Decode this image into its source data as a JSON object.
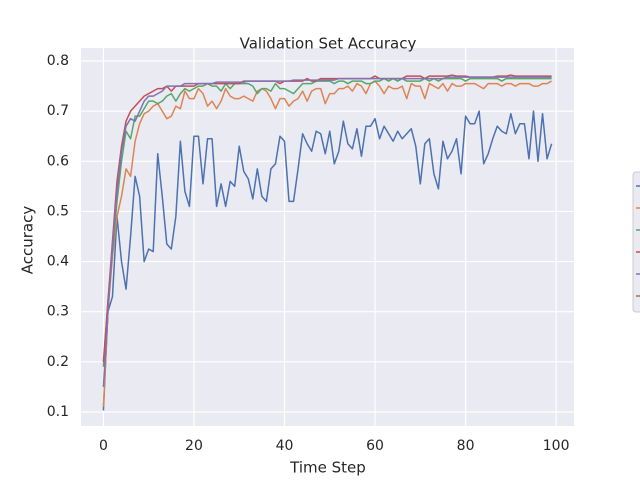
{
  "chart_data": {
    "type": "line",
    "title": "Validation Set Accuracy",
    "xlabel": "Time Step",
    "ylabel": "Accuracy",
    "x": [
      0,
      1,
      2,
      3,
      4,
      5,
      6,
      7,
      8,
      9,
      10,
      11,
      12,
      13,
      14,
      15,
      16,
      17,
      18,
      19,
      20,
      21,
      22,
      23,
      24,
      25,
      26,
      27,
      28,
      29,
      30,
      31,
      32,
      33,
      34,
      35,
      36,
      37,
      38,
      39,
      40,
      41,
      42,
      43,
      44,
      45,
      46,
      47,
      48,
      49,
      50,
      51,
      52,
      53,
      54,
      55,
      56,
      57,
      58,
      59,
      60,
      61,
      62,
      63,
      64,
      65,
      66,
      67,
      68,
      69,
      70,
      71,
      72,
      73,
      74,
      75,
      76,
      77,
      78,
      79,
      80,
      81,
      82,
      83,
      84,
      85,
      86,
      87,
      88,
      89,
      90,
      91,
      92,
      93,
      94,
      95,
      96,
      97,
      98,
      99
    ],
    "series": [
      {
        "color": "#4c72b0",
        "values": [
          0.103,
          0.3,
          0.33,
          0.49,
          0.4,
          0.345,
          0.45,
          0.57,
          0.53,
          0.4,
          0.425,
          0.42,
          0.615,
          0.53,
          0.435,
          0.425,
          0.49,
          0.64,
          0.54,
          0.51,
          0.65,
          0.65,
          0.555,
          0.645,
          0.645,
          0.51,
          0.555,
          0.51,
          0.56,
          0.55,
          0.63,
          0.58,
          0.565,
          0.525,
          0.585,
          0.53,
          0.52,
          0.585,
          0.595,
          0.65,
          0.64,
          0.52,
          0.52,
          0.585,
          0.655,
          0.635,
          0.62,
          0.66,
          0.655,
          0.615,
          0.66,
          0.595,
          0.62,
          0.68,
          0.635,
          0.625,
          0.665,
          0.61,
          0.67,
          0.67,
          0.685,
          0.645,
          0.67,
          0.655,
          0.64,
          0.66,
          0.645,
          0.655,
          0.665,
          0.63,
          0.555,
          0.635,
          0.645,
          0.575,
          0.545,
          0.64,
          0.605,
          0.62,
          0.645,
          0.575,
          0.69,
          0.675,
          0.675,
          0.7,
          0.595,
          0.615,
          0.645,
          0.67,
          0.66,
          0.655,
          0.695,
          0.655,
          0.675,
          0.675,
          0.605,
          0.7,
          0.6,
          0.695,
          0.605,
          0.635
        ]
      },
      {
        "color": "#dd8452",
        "values": [
          0.11,
          0.3,
          0.41,
          0.49,
          0.53,
          0.585,
          0.57,
          0.64,
          0.675,
          0.695,
          0.7,
          0.71,
          0.715,
          0.7,
          0.685,
          0.69,
          0.71,
          0.705,
          0.74,
          0.725,
          0.725,
          0.745,
          0.735,
          0.71,
          0.72,
          0.705,
          0.72,
          0.745,
          0.73,
          0.725,
          0.725,
          0.73,
          0.725,
          0.72,
          0.74,
          0.745,
          0.74,
          0.725,
          0.705,
          0.725,
          0.725,
          0.71,
          0.72,
          0.725,
          0.74,
          0.72,
          0.74,
          0.745,
          0.745,
          0.715,
          0.735,
          0.735,
          0.745,
          0.745,
          0.75,
          0.74,
          0.755,
          0.75,
          0.735,
          0.755,
          0.76,
          0.75,
          0.735,
          0.75,
          0.745,
          0.745,
          0.75,
          0.725,
          0.755,
          0.75,
          0.75,
          0.725,
          0.755,
          0.75,
          0.745,
          0.755,
          0.74,
          0.755,
          0.75,
          0.75,
          0.755,
          0.755,
          0.755,
          0.75,
          0.745,
          0.755,
          0.755,
          0.755,
          0.75,
          0.755,
          0.755,
          0.75,
          0.755,
          0.755,
          0.755,
          0.75,
          0.75,
          0.755,
          0.755,
          0.76
        ]
      },
      {
        "color": "#55a868",
        "values": [
          0.19,
          0.32,
          0.42,
          0.52,
          0.6,
          0.66,
          0.645,
          0.69,
          0.69,
          0.705,
          0.72,
          0.72,
          0.715,
          0.72,
          0.73,
          0.735,
          0.72,
          0.735,
          0.745,
          0.74,
          0.745,
          0.75,
          0.75,
          0.755,
          0.75,
          0.75,
          0.74,
          0.755,
          0.745,
          0.755,
          0.755,
          0.755,
          0.755,
          0.75,
          0.735,
          0.745,
          0.745,
          0.74,
          0.755,
          0.745,
          0.745,
          0.74,
          0.735,
          0.745,
          0.755,
          0.755,
          0.755,
          0.76,
          0.76,
          0.76,
          0.76,
          0.755,
          0.76,
          0.76,
          0.755,
          0.76,
          0.76,
          0.76,
          0.755,
          0.755,
          0.76,
          0.76,
          0.765,
          0.76,
          0.765,
          0.76,
          0.765,
          0.76,
          0.76,
          0.76,
          0.76,
          0.765,
          0.76,
          0.765,
          0.76,
          0.765,
          0.765,
          0.765,
          0.765,
          0.765,
          0.76,
          0.765,
          0.765,
          0.765,
          0.765,
          0.765,
          0.765,
          0.765,
          0.76,
          0.765,
          0.765,
          0.765,
          0.765,
          0.765,
          0.765,
          0.765,
          0.765,
          0.765,
          0.765,
          0.765
        ]
      },
      {
        "color": "#c44e52",
        "values": [
          0.2,
          0.32,
          0.44,
          0.56,
          0.63,
          0.68,
          0.7,
          0.71,
          0.72,
          0.73,
          0.735,
          0.74,
          0.745,
          0.745,
          0.75,
          0.74,
          0.75,
          0.75,
          0.75,
          0.75,
          0.75,
          0.755,
          0.755,
          0.755,
          0.755,
          0.755,
          0.755,
          0.755,
          0.755,
          0.755,
          0.755,
          0.76,
          0.76,
          0.76,
          0.76,
          0.76,
          0.76,
          0.76,
          0.76,
          0.755,
          0.76,
          0.76,
          0.76,
          0.76,
          0.76,
          0.765,
          0.76,
          0.76,
          0.765,
          0.765,
          0.765,
          0.765,
          0.765,
          0.765,
          0.765,
          0.765,
          0.765,
          0.765,
          0.765,
          0.765,
          0.77,
          0.765,
          0.765,
          0.765,
          0.765,
          0.765,
          0.765,
          0.77,
          0.77,
          0.77,
          0.77,
          0.765,
          0.77,
          0.77,
          0.77,
          0.77,
          0.77,
          0.772,
          0.77,
          0.77,
          0.77,
          0.768,
          0.768,
          0.768,
          0.768,
          0.768,
          0.768,
          0.77,
          0.77,
          0.77,
          0.772,
          0.77,
          0.77,
          0.77,
          0.77,
          0.77,
          0.77,
          0.77,
          0.77,
          0.77
        ]
      },
      {
        "color": "#8172b3",
        "values": [
          0.15,
          0.3,
          0.43,
          0.54,
          0.62,
          0.67,
          0.685,
          0.68,
          0.7,
          0.72,
          0.73,
          0.73,
          0.735,
          0.74,
          0.75,
          0.75,
          0.75,
          0.75,
          0.755,
          0.755,
          0.755,
          0.755,
          0.755,
          0.755,
          0.755,
          0.758,
          0.758,
          0.758,
          0.758,
          0.758,
          0.758,
          0.758,
          0.76,
          0.76,
          0.76,
          0.76,
          0.76,
          0.76,
          0.76,
          0.76,
          0.76,
          0.76,
          0.762,
          0.762,
          0.762,
          0.762,
          0.762,
          0.762,
          0.762,
          0.762,
          0.762,
          0.762,
          0.765,
          0.765,
          0.765,
          0.765,
          0.765,
          0.765,
          0.765,
          0.765,
          0.765,
          0.765,
          0.765,
          0.765,
          0.765,
          0.765,
          0.765,
          0.765,
          0.765,
          0.765,
          0.765,
          0.765,
          0.765,
          0.765,
          0.765,
          0.765,
          0.768,
          0.768,
          0.768,
          0.768,
          0.768,
          0.768,
          0.768,
          0.768,
          0.768,
          0.768,
          0.768,
          0.768,
          0.768,
          0.768,
          0.768,
          0.768,
          0.768,
          0.768,
          0.768,
          0.768,
          0.768,
          0.768,
          0.768,
          0.768
        ]
      }
    ],
    "xlim": [
      -4.95,
      103.95
    ],
    "ylim": [
      0.072,
      0.826
    ],
    "xticks": [
      0,
      20,
      40,
      60,
      80,
      100
    ],
    "yticks": [
      0.1,
      0.2,
      0.3,
      0.4,
      0.5,
      0.6,
      0.7,
      0.8
    ],
    "grid": true
  }
}
